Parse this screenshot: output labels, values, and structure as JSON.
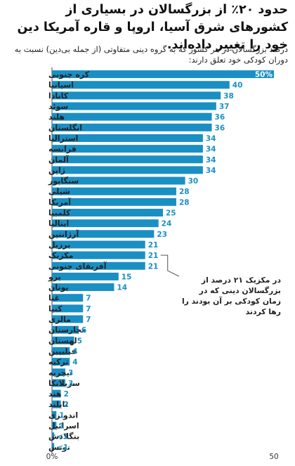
{
  "title": "حدود ۲۰٪ از بزرگسالان در بسیاری از کشورهای شرق آسیا، اروپا و قاره آمریکا دین خود را تغییر داده‌اند.",
  "subtitle": "درصد بزرگسالان در هر کشور که به گروه دینی متفاوتی (از جمله بی‌دین) نسبت به دوران کودکی خود تعلق دارند:",
  "annotation": "در مکزیک ۲۱ درصد از بزرگسالان دینی که در زمان کودکی بر آن بودند را رها کردند",
  "colors": {
    "bar": "#1a8fc4",
    "label_dark": "#1a8fc4",
    "label_light": "#ffffff",
    "axis": "#444444"
  },
  "chart_data": {
    "type": "bar",
    "orientation": "horizontal",
    "categories": [
      "کره جنوبی",
      "اسپانیا",
      "کانادا",
      "سوئد",
      "هلند",
      "انگلستان",
      "استرالیا",
      "فرانسه",
      "آلمان",
      "ژاپن",
      "سنگاپور",
      "شیلی",
      "آمریکا",
      "کلمبیا",
      "ایتالیا",
      "آرژانتین",
      "برزیل",
      "مکزیک",
      "آفریقای جنوبی",
      "پرو",
      "یونان",
      "غنا",
      "کنیا",
      "مالزی",
      "مجارستان",
      "لهستان",
      "فیلیپین",
      "ترکیه",
      "نیجریه",
      "سریلانکا",
      "هند",
      "تایلند",
      "اندونزی",
      "اسرائیل",
      "بنگلادش",
      "تونس"
    ],
    "values": [
      50,
      40,
      38,
      37,
      36,
      36,
      34,
      34,
      34,
      34,
      30,
      28,
      28,
      25,
      24,
      23,
      21,
      21,
      21,
      15,
      14,
      7,
      7,
      7,
      6,
      5,
      4,
      4,
      3,
      3,
      2,
      2,
      1,
      1,
      0.5,
      0.5
    ],
    "value_labels": [
      "50%",
      "40",
      "38",
      "37",
      "36",
      "36",
      "34",
      "34",
      "34",
      "34",
      "30",
      "28",
      "28",
      "25",
      "24",
      "23",
      "21",
      "21",
      "21",
      "15",
      "14",
      "7",
      "7",
      "7",
      "6",
      "5",
      "4",
      "4",
      "3",
      "3",
      "2",
      "2",
      "1",
      "1",
      "<1",
      "<1"
    ],
    "xlim": [
      0,
      50
    ],
    "xticks": [
      "0%",
      "50"
    ],
    "highlight": "مکزیک"
  }
}
